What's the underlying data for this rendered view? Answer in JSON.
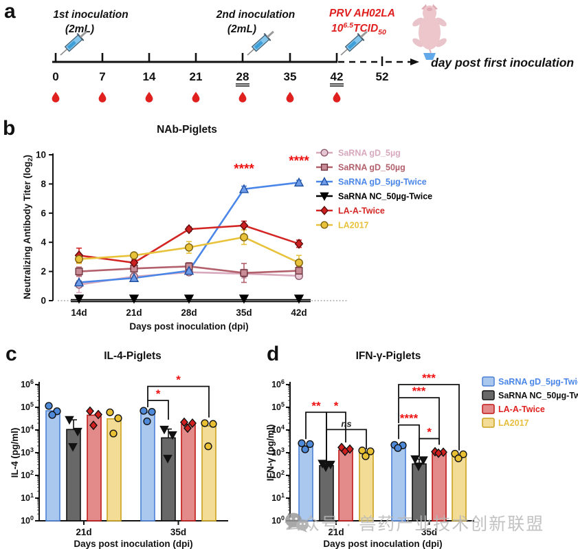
{
  "panels": {
    "a": {
      "letter": "a",
      "first_line1": "1st inoculation",
      "first_line2": "(2mL)",
      "second_line1": "2nd inoculation",
      "second_line2": "(2mL)",
      "challenge_line1": "PRV AH02LA",
      "challenge_base": "10",
      "challenge_exp": "6.5",
      "challenge_mid": "TCID",
      "challenge_sub": "50",
      "challenge_color": "#e02020",
      "caption": "day post first inoculation",
      "days": [
        "0",
        "7",
        "14",
        "21",
        "28",
        "35",
        "42"
      ],
      "underlined_days": [
        "28",
        "42"
      ],
      "last_day": "52",
      "drop_color": "#e01f1f"
    },
    "b": {
      "letter": "b"
    },
    "c": {
      "letter": "c"
    },
    "d": {
      "letter": "d"
    }
  },
  "watermark": {
    "icon": "wechat-icon",
    "text": "公众号 · 兽药产业技术创新联盟",
    "color": "#b8b8b8"
  },
  "chart_data": [
    {
      "id": "nab",
      "type": "line",
      "title": "NAb-Piglets",
      "xlabel": "Days post inoculation (dpi)",
      "ylabel_main": "Neutralizing Antibody Titer (log",
      "ylabel_sub": "2",
      "ylabel_end": ")",
      "x_categories": [
        "14d",
        "21d",
        "28d",
        "35d",
        "42d"
      ],
      "ylim": [
        0,
        10
      ],
      "y_ticks": [
        0,
        2,
        4,
        6,
        8,
        10
      ],
      "legend_position": "right",
      "sig_color": "#ee1111",
      "series": [
        {
          "name": "SaRNA gD_5µg",
          "color": "#d8a8bc",
          "marker": "circle",
          "marker_fill": "#e7c6d3",
          "marker_edge": "#8d5a6e",
          "values": [
            1.1,
            1.65,
            1.95,
            1.85,
            1.7
          ],
          "errors": [
            0.55,
            0.25,
            0.2,
            0.3,
            0.2
          ]
        },
        {
          "name": "SaRNA gD_50µg",
          "color": "#b2606c",
          "marker": "square",
          "marker_fill": "#c78c96",
          "marker_edge": "#6e333c",
          "values": [
            2.0,
            2.2,
            2.35,
            1.9,
            2.05
          ],
          "errors": [
            0.3,
            0.2,
            0.25,
            0.65,
            0.3
          ]
        },
        {
          "name": "SaRNA gD_5µg-Twice",
          "color": "#4a86e8",
          "marker": "triangle",
          "marker_fill": "#6f9ce8",
          "marker_edge": "#1f4fa0",
          "values": [
            1.25,
            1.55,
            2.05,
            7.65,
            8.1
          ],
          "errors": [
            0.1,
            0.15,
            0.1,
            0.2,
            0.15
          ]
        },
        {
          "name": "SaRNA NC_50µg-Twice",
          "color": "#000000",
          "marker": "triangle-down",
          "marker_fill": "#000000",
          "marker_edge": "#000000",
          "values": [
            0,
            0,
            0,
            0,
            0
          ],
          "errors": [
            0,
            0,
            0,
            0,
            0
          ]
        },
        {
          "name": "LA-A-Twice",
          "color": "#d42525",
          "marker": "diamond",
          "marker_fill": "#cc2020",
          "marker_edge": "#5e0a0a",
          "values": [
            3.1,
            2.6,
            4.9,
            5.15,
            3.9
          ],
          "errors": [
            0.5,
            0.2,
            0.15,
            0.3,
            0.25
          ]
        },
        {
          "name": "LA2017",
          "color": "#e8c23a",
          "marker": "circle",
          "marker_fill": "#e8c23a",
          "marker_edge": "#7d620e",
          "values": [
            2.85,
            3.1,
            3.65,
            4.35,
            2.6
          ],
          "errors": [
            0.3,
            0.15,
            0.4,
            0.5,
            0.5
          ]
        }
      ],
      "annotations": [
        {
          "text": "****",
          "x_index": 3,
          "y": 8.75
        },
        {
          "text": "****",
          "x_index": 4,
          "y": 9.3
        }
      ]
    },
    {
      "id": "il4",
      "type": "bar",
      "title": "IL-4-Piglets",
      "xlabel": "Days post inoculation (dpi)",
      "ylabel": "IL-4 (pg/ml)",
      "groups": [
        "21d",
        "35d"
      ],
      "log_scale": true,
      "y_tick_exponents": [
        0,
        1,
        2,
        3,
        4,
        5,
        6
      ],
      "sig_color": "#ee1111",
      "series": [
        {
          "name": "SaRNA gD_5µg-Twice",
          "bar_fill": "#aac7ee",
          "bar_edge": "#4a7fd4",
          "marker": "circle",
          "marker_fill": "#4e8ad8",
          "bars": [
            70000,
            60000
          ],
          "points": [
            [
              115000,
              67000,
              46000
            ],
            [
              70000,
              63000,
              24000
            ]
          ]
        },
        {
          "name": "SaRNA NC_50µg-Twice",
          "bar_fill": "#686868",
          "bar_edge": "#111111",
          "marker": "triangle-down",
          "marker_fill": "#111111",
          "bars": [
            10500,
            4500
          ],
          "err_hi": [
            28000,
            11000
          ],
          "points": [
            [
              28000,
              8500,
              1800
            ],
            [
              10500,
              6000,
              550
            ]
          ]
        },
        {
          "name": "LA-A-Twice",
          "bar_fill": "#e38b8b",
          "bar_edge": "#c01818",
          "marker": "diamond",
          "marker_fill": "#d01f1f",
          "bars": [
            45000,
            18000
          ],
          "points": [
            [
              68000,
              48000,
              16000
            ],
            [
              22000,
              20000,
              12000
            ]
          ]
        },
        {
          "name": "LA2017",
          "bar_fill": "#f2dc96",
          "bar_edge": "#caa21c",
          "marker": "circle",
          "marker_fill": "#e9bf33",
          "bars": [
            31000,
            15000
          ],
          "points": [
            [
              60000,
              33000,
              7000
            ],
            [
              20000,
              18500,
              1900
            ]
          ]
        }
      ],
      "brackets": [
        {
          "group": 1,
          "i": 0,
          "j": 1,
          "label": "*",
          "y": 5.3,
          "drop_i": 5.0,
          "drop_j": 4.45
        },
        {
          "group": 1,
          "i": 0,
          "j": 3,
          "label": "*",
          "y": 5.92,
          "drop_i": 5.3,
          "drop_j": 4.55
        }
      ]
    },
    {
      "id": "ifng",
      "type": "bar",
      "title": "IFN-γ-Piglets",
      "xlabel": "Days post inoculation (dpi)",
      "ylabel": "IFN-γ (pg/ml)",
      "groups": [
        "21d",
        "35d"
      ],
      "log_scale": true,
      "y_tick_exponents": [
        0,
        1,
        2,
        3,
        4,
        5,
        6
      ],
      "sig_color": "#ee1111",
      "legend_text_colors": [
        "#4a86e8",
        "#111111",
        "#e02020",
        "#e6bd3c"
      ],
      "series": [
        {
          "name": "SaRNA gD_5µg-Twice",
          "bar_fill": "#aac7ee",
          "bar_edge": "#4a7fd4",
          "marker": "circle",
          "marker_fill": "#4e8ad8",
          "bars": [
            2000,
            1800
          ],
          "points": [
            [
              2600,
              2400,
              1400
            ],
            [
              2200,
              2100,
              1600
            ]
          ]
        },
        {
          "name": "SaRNA NC_50µg-Twice",
          "bar_fill": "#686868",
          "bar_edge": "#111111",
          "marker": "triangle-down",
          "marker_fill": "#111111",
          "bars": [
            270,
            320
          ],
          "err_hi": [
            360,
            520
          ],
          "points": [
            [
              330,
              300,
              230
            ],
            [
              520,
              470,
              250
            ]
          ]
        },
        {
          "name": "LA-A-Twice",
          "bar_fill": "#e38b8b",
          "bar_edge": "#c01818",
          "marker": "diamond",
          "marker_fill": "#d01f1f",
          "bars": [
            1300,
            900
          ],
          "points": [
            [
              1700,
              1450,
              1150
            ],
            [
              1100,
              1050,
              950
            ]
          ]
        },
        {
          "name": "LA2017",
          "bar_fill": "#f2dc96",
          "bar_edge": "#caa21c",
          "marker": "circle",
          "marker_fill": "#e9bf33",
          "bars": [
            1050,
            750
          ],
          "points": [
            [
              1250,
              1150,
              700
            ],
            [
              900,
              850,
              560
            ]
          ]
        }
      ],
      "brackets": [
        {
          "group": 0,
          "i": 0,
          "j": 1,
          "label": "**",
          "y": 4.78,
          "drop_i": 3.6,
          "drop_j": 2.5
        },
        {
          "group": 0,
          "i": 1,
          "j": 2,
          "label": "*",
          "y": 4.78,
          "drop_i": 2.5,
          "drop_j": 3.45
        },
        {
          "group": 0,
          "i": 1,
          "j": 3,
          "label": "ns",
          "y": 4.02,
          "drop_i": 2.5,
          "drop_j": 3.15
        },
        {
          "group": 1,
          "i": 0,
          "j": 3,
          "label": "***",
          "y": 6.0,
          "drop_i": 5.45,
          "drop_j": 3.1
        },
        {
          "group": 1,
          "i": 0,
          "j": 2,
          "label": "***",
          "y": 5.42,
          "drop_i": 4.3,
          "drop_j": 3.35
        },
        {
          "group": 1,
          "i": 0,
          "j": 1,
          "label": "****",
          "y": 4.22,
          "drop_i": 3.6,
          "drop_j": 2.85
        },
        {
          "group": 1,
          "i": 1,
          "j": 2,
          "label": "*",
          "y": 3.62,
          "drop_i": 2.85,
          "drop_j": 3.35
        }
      ]
    }
  ]
}
